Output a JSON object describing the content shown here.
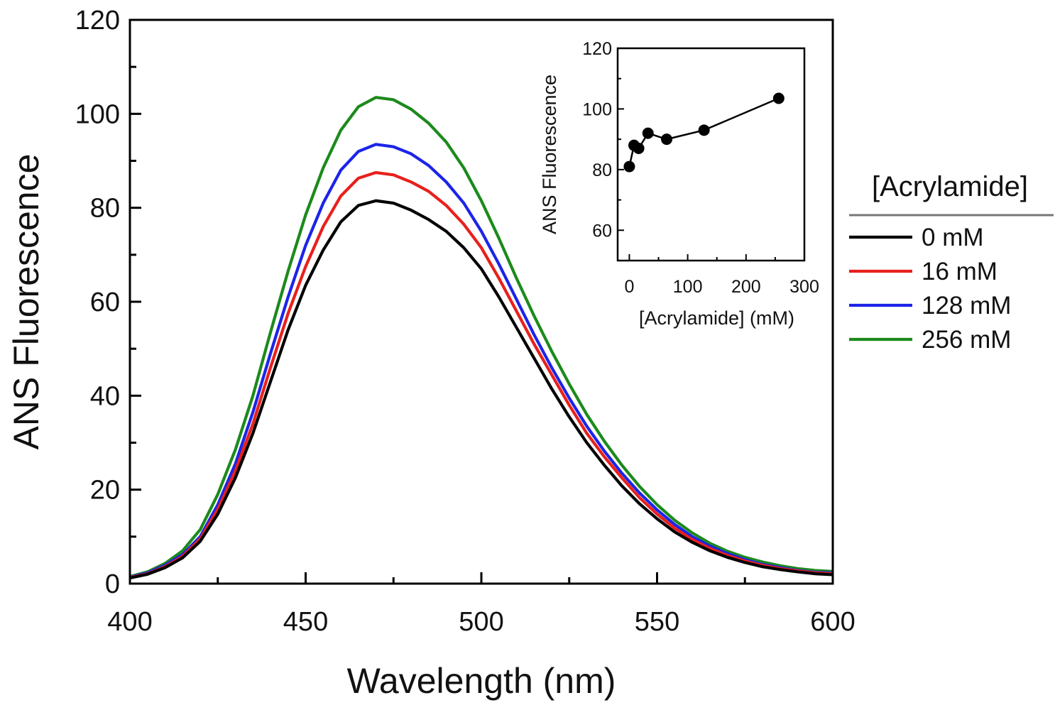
{
  "chart_data": [
    {
      "id": "main",
      "type": "line",
      "title": "",
      "xlabel": "Wavelength (nm)",
      "ylabel": "ANS Fluorescence",
      "xlim": [
        400,
        600
      ],
      "ylim": [
        0,
        120
      ],
      "xticks": [
        400,
        450,
        500,
        550,
        600
      ],
      "yticks": [
        0,
        20,
        40,
        60,
        80,
        100,
        120
      ],
      "grid": false,
      "x": [
        400,
        405,
        410,
        415,
        420,
        425,
        430,
        435,
        440,
        445,
        450,
        455,
        460,
        465,
        470,
        475,
        480,
        485,
        490,
        495,
        500,
        505,
        510,
        515,
        520,
        525,
        530,
        535,
        540,
        545,
        550,
        555,
        560,
        565,
        570,
        575,
        580,
        585,
        590,
        595,
        600
      ],
      "series": [
        {
          "name": "0 mM",
          "color": "#000000",
          "values": [
            1.2,
            2.0,
            3.4,
            5.5,
            9.0,
            14.8,
            22.5,
            32.0,
            43.0,
            54.0,
            63.5,
            71.0,
            77.0,
            80.5,
            81.5,
            81.0,
            79.5,
            77.5,
            75.0,
            71.5,
            67.0,
            61.0,
            54.5,
            48.0,
            41.5,
            35.5,
            30.0,
            25.2,
            20.8,
            17.0,
            13.8,
            11.0,
            8.8,
            7.0,
            5.6,
            4.5,
            3.6,
            3.0,
            2.5,
            2.1,
            1.9
          ]
        },
        {
          "name": "16 mM",
          "color": "#e8201c",
          "values": [
            1.3,
            2.1,
            3.6,
            5.8,
            9.5,
            15.8,
            24.0,
            34.0,
            46.0,
            57.5,
            67.5,
            76.0,
            82.5,
            86.3,
            87.5,
            87.0,
            85.5,
            83.5,
            80.5,
            76.5,
            71.5,
            65.0,
            58.0,
            51.0,
            44.5,
            38.0,
            32.0,
            27.0,
            22.5,
            18.3,
            14.8,
            11.8,
            9.4,
            7.5,
            6.0,
            4.8,
            3.9,
            3.2,
            2.7,
            2.3,
            2.1
          ]
        },
        {
          "name": "128 mM",
          "color": "#1c24e8",
          "values": [
            1.4,
            2.3,
            3.9,
            6.2,
            10.0,
            16.8,
            25.5,
            36.5,
            49.0,
            61.0,
            72.0,
            81.0,
            88.0,
            92.0,
            93.5,
            93.0,
            91.5,
            89.0,
            85.5,
            81.0,
            75.0,
            68.0,
            60.5,
            53.0,
            46.0,
            39.5,
            33.5,
            28.2,
            23.5,
            19.3,
            15.7,
            12.6,
            10.0,
            8.0,
            6.4,
            5.1,
            4.1,
            3.4,
            2.8,
            2.4,
            2.3
          ]
        },
        {
          "name": "256 mM",
          "color": "#1c8a1c",
          "values": [
            1.5,
            2.5,
            4.3,
            7.0,
            11.5,
            19.0,
            28.5,
            40.0,
            53.5,
            66.5,
            78.5,
            88.5,
            96.5,
            101.5,
            103.5,
            103.0,
            101.0,
            98.0,
            94.0,
            88.5,
            81.5,
            73.5,
            65.0,
            57.0,
            49.5,
            42.5,
            36.0,
            30.3,
            25.2,
            20.7,
            16.8,
            13.5,
            10.8,
            8.6,
            6.9,
            5.6,
            4.6,
            3.8,
            3.2,
            2.8,
            2.6
          ]
        }
      ]
    },
    {
      "id": "inset",
      "type": "scatter",
      "title": "",
      "xlabel": "[Acrylamide] (mM)",
      "ylabel": "ANS Fluorescence",
      "xlim": [
        -20,
        300
      ],
      "ylim": [
        50,
        120
      ],
      "xticks": [
        0,
        100,
        200,
        300
      ],
      "yticks": [
        60,
        80,
        100,
        120
      ],
      "grid": false,
      "series": [
        {
          "name": "ANS Fluorescence",
          "color": "#000000",
          "x": [
            0,
            8,
            16,
            32,
            64,
            128,
            256
          ],
          "values": [
            81.0,
            88.0,
            87.0,
            92.0,
            90.0,
            93.0,
            103.5
          ]
        }
      ]
    }
  ],
  "legend": {
    "title": "[Acrylamide]",
    "placement": "right",
    "items": [
      "0 mM",
      "16 mM",
      "128 mM",
      "256 mM"
    ]
  }
}
